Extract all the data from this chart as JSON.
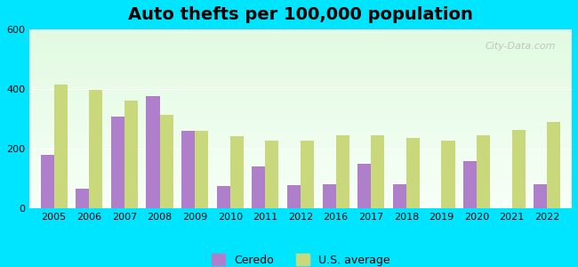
{
  "title": "Auto thefts per 100,000 population",
  "years": [
    2005,
    2006,
    2007,
    2008,
    2009,
    2010,
    2011,
    2012,
    2016,
    2017,
    2018,
    2019,
    2020,
    2021,
    2022
  ],
  "ceredo": [
    178,
    65,
    308,
    375,
    260,
    75,
    140,
    78,
    82,
    148,
    80,
    0,
    158,
    0,
    80
  ],
  "us_avg": [
    415,
    398,
    360,
    315,
    261,
    242,
    228,
    228,
    246,
    246,
    237,
    228,
    246,
    262,
    290
  ],
  "ceredo_color": "#b07fcc",
  "us_avg_color": "#c8d87a",
  "background_top": "#e8f5e8",
  "background_bottom": "#f5fff5",
  "outer_bg": "#00e5ff",
  "ylim": [
    0,
    600
  ],
  "yticks": [
    0,
    200,
    400,
    600
  ],
  "bar_width": 0.38,
  "legend_labels": [
    "Ceredo",
    "U.S. average"
  ],
  "watermark": "City-Data.com"
}
